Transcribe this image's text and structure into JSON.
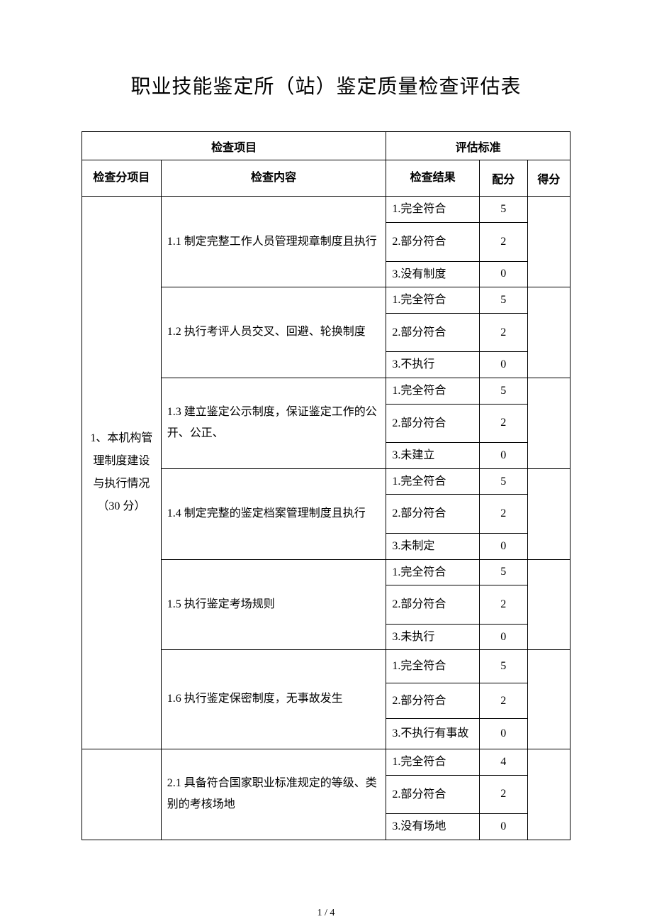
{
  "title": "职业技能鉴定所（站）鉴定质量检查评估表",
  "headers": {
    "checkItem": "检查项目",
    "evalStandard": "评估标准",
    "subItem": "检查分项目",
    "content": "检查内容",
    "result": "检查结果",
    "allocation": "配分",
    "earned": "得分"
  },
  "categories": {
    "cat1": "1、本机构管理制度建设与执行情况（30 分）"
  },
  "items": {
    "c1_1": "1.1 制定完整工作人员管理规章制度且执行",
    "c1_2": "1.2 执行考评人员交叉、回避、轮换制度",
    "c1_3": "1.3 建立鉴定公示制度，保证鉴定工作的公开、公正、",
    "c1_4": "1.4 制定完整的鉴定档案管理制度且执行",
    "c1_5": "1.5 执行鉴定考场规则",
    "c1_6": "1.6 执行鉴定保密制度，无事故发生",
    "c2_1": "2.1 具备符合国家职业标准规定的等级、类别的考核场地"
  },
  "results": {
    "r1_1a": "1.完全符合",
    "r1_1b": "2.部分符合",
    "r1_1c": "3.没有制度",
    "r1_2a": "1.完全符合",
    "r1_2b": "2.部分符合",
    "r1_2c": "3.不执行",
    "r1_3a": "1.完全符合",
    "r1_3b": "2.部分符合",
    "r1_3c": "3.未建立",
    "r1_4a": "1.完全符合",
    "r1_4b": "2.部分符合",
    "r1_4c": "3.未制定",
    "r1_5a": "1.完全符合",
    "r1_5b": "2.部分符合",
    "r1_5c": "3.未执行",
    "r1_6a": "1.完全符合",
    "r1_6b": "2.部分符合",
    "r1_6c": "3.不执行有事故",
    "r2_1a": "1.完全符合",
    "r2_1b": "2.部分符合",
    "r2_1c": "3.没有场地"
  },
  "scores": {
    "s1_1a": "5",
    "s1_1b": "2",
    "s1_1c": "0",
    "s1_2a": "5",
    "s1_2b": "2",
    "s1_2c": "0",
    "s1_3a": "5",
    "s1_3b": "2",
    "s1_3c": "0",
    "s1_4a": "5",
    "s1_4b": "2",
    "s1_4c": "0",
    "s1_5a": "5",
    "s1_5b": "2",
    "s1_5c": "0",
    "s1_6a": "5",
    "s1_6b": "2",
    "s1_6c": "0",
    "s2_1a": "4",
    "s2_1b": "2",
    "s2_1c": "0"
  },
  "footer": "1 / 4"
}
